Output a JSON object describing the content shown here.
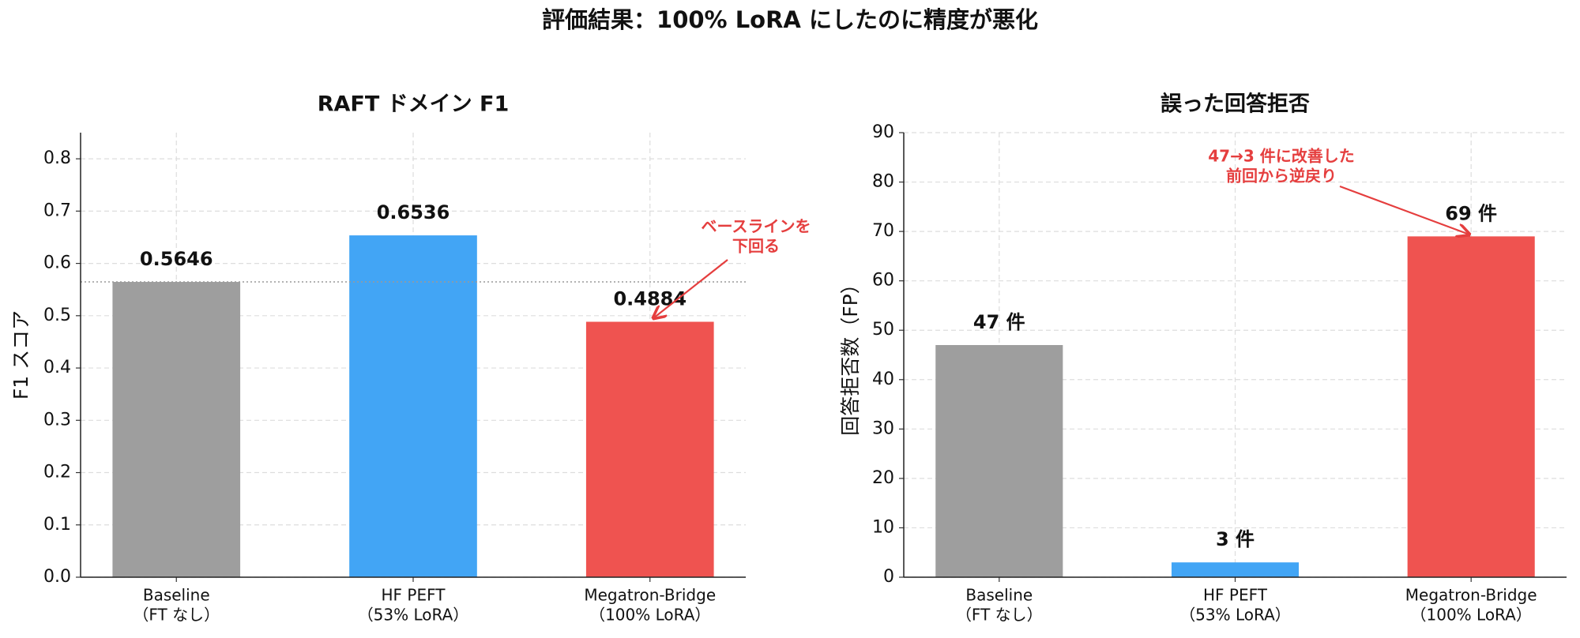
{
  "title": "評価結果：100% LoRA にしたのに精度が悪化",
  "chart_data": [
    {
      "type": "bar",
      "title": "RAFT ドメイン F1",
      "y_label": "F1 スコア",
      "categories": [
        [
          "Baseline",
          "（FT なし）"
        ],
        [
          "HF PEFT",
          "（53% LoRA）"
        ],
        [
          "Megatron-Bridge",
          "（100% LoRA）"
        ]
      ],
      "values": [
        0.5646,
        0.6536,
        0.4884
      ],
      "value_labels": [
        "0.5646",
        "0.6536",
        "0.4884"
      ],
      "colors": [
        "#9e9e9e",
        "#42a5f5",
        "#ef5350"
      ],
      "ylim": [
        0,
        0.85
      ],
      "yticks": [
        {
          "value": 0,
          "label": "0.0"
        },
        0.1,
        0.2,
        0.3,
        0.4,
        0.5,
        0.6,
        0.7,
        0.8
      ],
      "grid": true,
      "baseline_line": true,
      "annotation": {
        "lines": [
          "ベースラインを",
          "下回る"
        ],
        "target": 2,
        "color": "#e53e3e"
      }
    },
    {
      "type": "bar",
      "title": "誤った回答拒否",
      "y_label": "回答拒否数（FP）",
      "categories": [
        [
          "Baseline",
          "（FT なし）"
        ],
        [
          "HF PEFT",
          "（53% LoRA）"
        ],
        [
          "Megatron-Bridge",
          "（100% LoRA）"
        ]
      ],
      "values": [
        47,
        3,
        69
      ],
      "value_labels": [
        "47 件",
        "3 件",
        "69 件"
      ],
      "colors": [
        "#9e9e9e",
        "#42a5f5",
        "#ef5350"
      ],
      "ylim": [
        0,
        90
      ],
      "yticks": [
        0,
        10,
        20,
        30,
        40,
        50,
        60,
        70,
        80,
        90
      ],
      "grid": true,
      "baseline_line": false,
      "annotation": {
        "lines": [
          "47→3 件に改善した",
          "前回から逆戻り"
        ],
        "target": 2,
        "color": "#e53e3e"
      }
    }
  ]
}
